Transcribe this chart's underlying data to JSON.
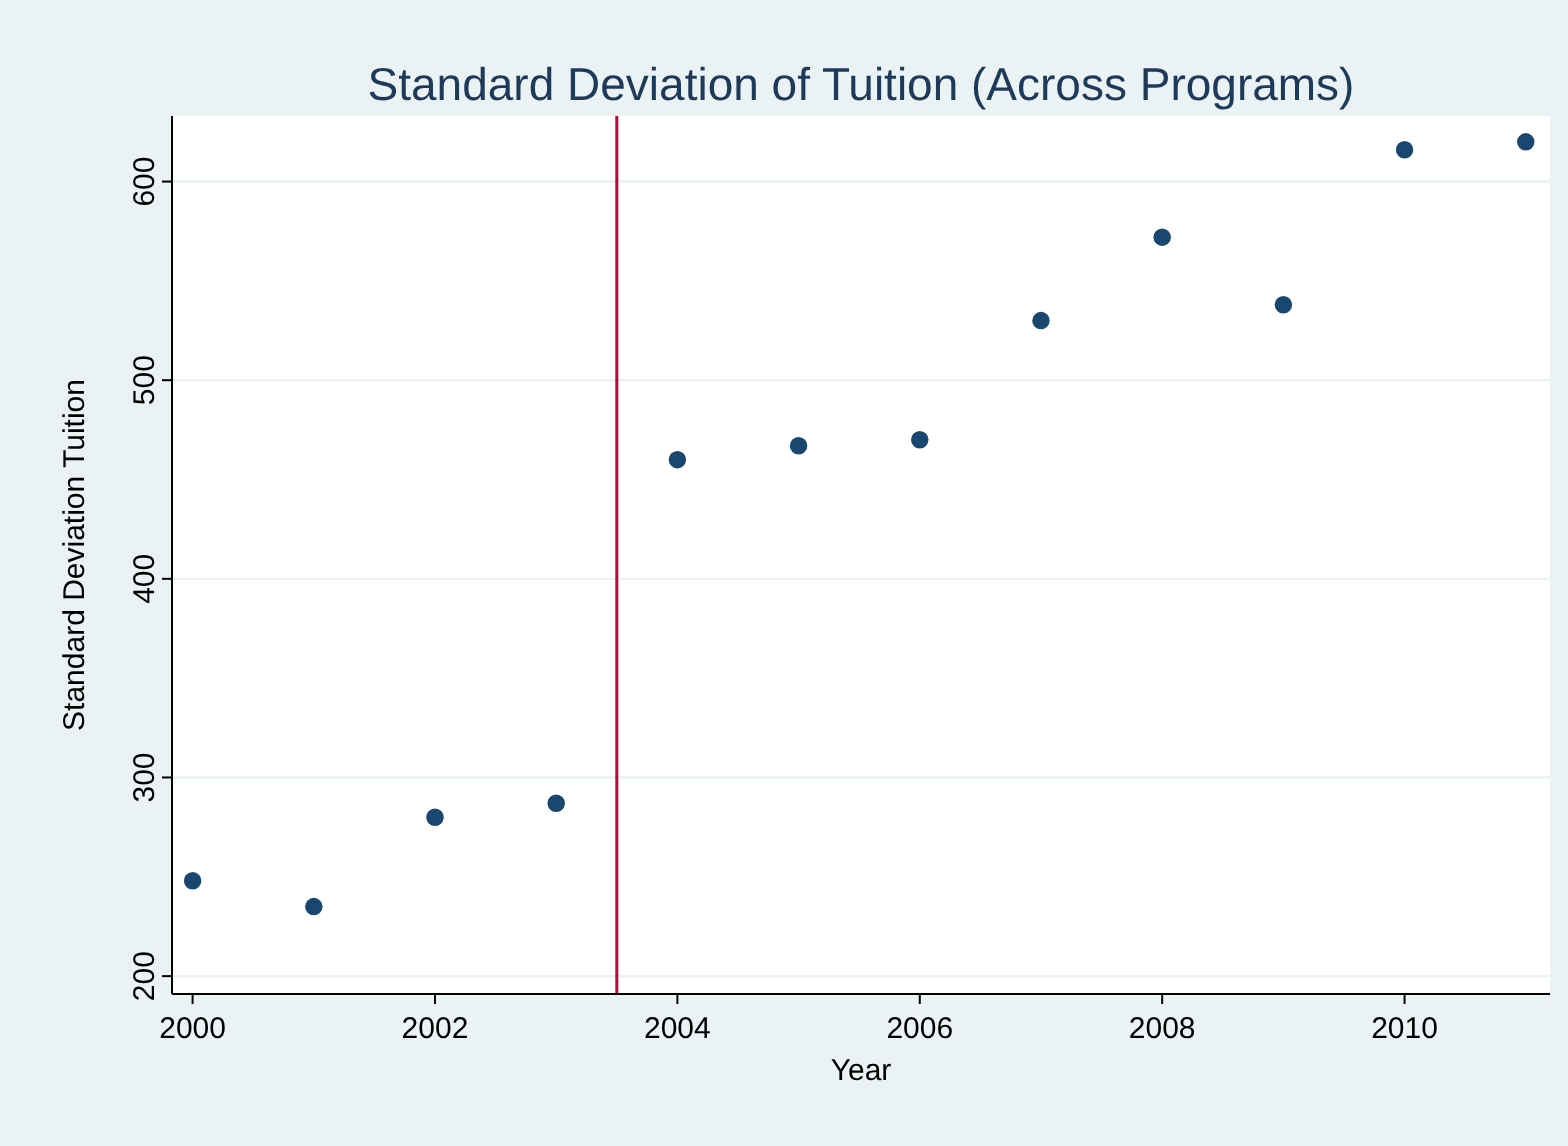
{
  "chart_data": {
    "type": "scatter",
    "title": "Standard Deviation of Tuition (Across Programs)",
    "xlabel": "Year",
    "ylabel": "Standard Deviation Tuition",
    "x": [
      2000,
      2001,
      2002,
      2003,
      2004,
      2005,
      2006,
      2007,
      2008,
      2009,
      2010,
      2011
    ],
    "series": [
      {
        "color": "#1a476f",
        "values": [
          248,
          235,
          280,
          287,
          460,
          467,
          470,
          530,
          572,
          538,
          616,
          620
        ]
      }
    ],
    "xlim": [
      1999.83,
      2011.2
    ],
    "xticks": [
      2000,
      2002,
      2004,
      2006,
      2008,
      2010
    ],
    "ylim": [
      191,
      633
    ],
    "yticks": [
      200,
      300,
      400,
      500,
      600
    ],
    "grid": "y",
    "marker": "circle",
    "ref_lines": [
      {
        "axis": "x",
        "value": 2003.5,
        "color": "#c10534"
      }
    ]
  }
}
